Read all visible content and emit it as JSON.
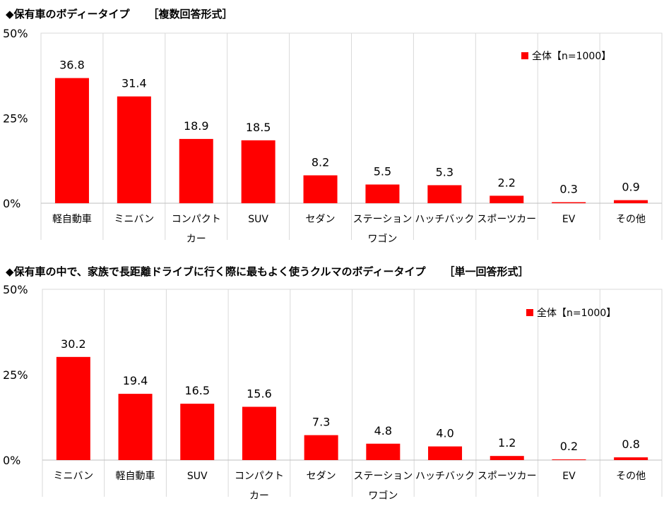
{
  "chart_data": [
    {
      "type": "bar",
      "title": "◆保有車のボディータイプ",
      "answer_format": "［複数回答形式］",
      "categories": [
        "軽自動車",
        "ミニバン",
        "コンパクトカー",
        "SUV",
        "セダン",
        "ステーションワゴン",
        "ハッチバック",
        "スポーツカー",
        "EV",
        "その他"
      ],
      "category_lines": [
        [
          "軽自動車"
        ],
        [
          "ミニバン"
        ],
        [
          "コンパクト",
          "カー"
        ],
        [
          "SUV"
        ],
        [
          "セダン"
        ],
        [
          "ステーション",
          "ワゴン"
        ],
        [
          "ハッチバック"
        ],
        [
          "スポーツカー"
        ],
        [
          "EV"
        ],
        [
          "その他"
        ]
      ],
      "series": [
        {
          "name": "全体【n=1000】",
          "values": [
            36.8,
            31.4,
            18.9,
            18.5,
            8.2,
            5.5,
            5.3,
            2.2,
            0.3,
            0.9
          ]
        }
      ],
      "ylim": [
        0,
        50
      ],
      "yticks": [
        "0%",
        "25%",
        "50%"
      ],
      "grid": "vertical category separators",
      "legend": "top-right",
      "bar_color": "#ff0000"
    },
    {
      "type": "bar",
      "title": "◆保有車の中で、家族で長距離ドライブに行く際に最もよく使うクルマのボディータイプ",
      "answer_format": "［単一回答形式］",
      "categories": [
        "ミニバン",
        "軽自動車",
        "SUV",
        "コンパクトカー",
        "セダン",
        "ステーションワゴン",
        "ハッチバック",
        "スポーツカー",
        "EV",
        "その他"
      ],
      "category_lines": [
        [
          "ミニバン"
        ],
        [
          "軽自動車"
        ],
        [
          "SUV"
        ],
        [
          "コンパクト",
          "カー"
        ],
        [
          "セダン"
        ],
        [
          "ステーション",
          "ワゴン"
        ],
        [
          "ハッチバック"
        ],
        [
          "スポーツカー"
        ],
        [
          "EV"
        ],
        [
          "その他"
        ]
      ],
      "series": [
        {
          "name": "全体【n=1000】",
          "values": [
            30.2,
            19.4,
            16.5,
            15.6,
            7.3,
            4.8,
            4.0,
            1.2,
            0.2,
            0.8
          ]
        }
      ],
      "ylim": [
        0,
        50
      ],
      "yticks": [
        "0%",
        "25%",
        "50%"
      ],
      "grid": "vertical category separators",
      "legend": "top-right",
      "bar_color": "#ff0000"
    }
  ]
}
